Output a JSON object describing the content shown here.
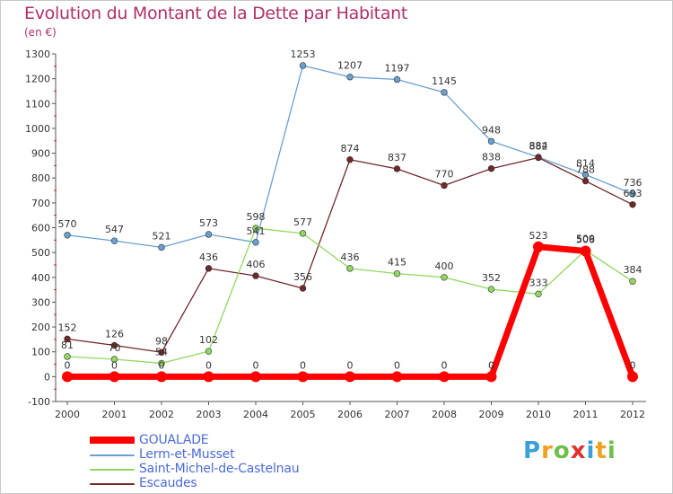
{
  "title": "Evolution du Montant de la Dette par Habitant",
  "unit": "(en €)",
  "logo": {
    "letters": [
      {
        "ch": "P",
        "color": "#3aa0d8"
      },
      {
        "ch": "r",
        "color": "#f0a020"
      },
      {
        "ch": "o",
        "color": "#6cc04a"
      },
      {
        "ch": "x",
        "color": "#e03030"
      },
      {
        "ch": "i",
        "color": "#3aa0d8"
      },
      {
        "ch": "t",
        "color": "#f0a020"
      },
      {
        "ch": "i",
        "color": "#6cc04a"
      }
    ]
  },
  "chart_data": {
    "type": "line",
    "x": [
      "2000",
      "2001",
      "2002",
      "2003",
      "2004",
      "2005",
      "2006",
      "2007",
      "2008",
      "2009",
      "2010",
      "2011",
      "2012"
    ],
    "ylim": [
      -100,
      1300
    ],
    "yticks": [
      -100,
      0,
      100,
      200,
      300,
      400,
      500,
      600,
      700,
      800,
      900,
      1000,
      1100,
      1200,
      1300
    ],
    "grid": false,
    "legend_position": "bottom-left",
    "series": [
      {
        "name": "GOUALADE",
        "color": "#ff0000",
        "values": [
          0,
          0,
          0,
          0,
          0,
          0,
          0,
          0,
          0,
          0,
          523,
          506,
          0
        ]
      },
      {
        "name": "Lerm-et-Musset",
        "color": "#6aa0d0",
        "values": [
          570,
          547,
          521,
          573,
          541,
          1253,
          1207,
          1197,
          1145,
          948,
          884,
          814,
          736
        ]
      },
      {
        "name": "Saint-Michel-de-Castelnau",
        "color": "#90d860",
        "values": [
          81,
          70,
          54,
          102,
          598,
          577,
          436,
          415,
          400,
          352,
          333,
          509,
          384
        ]
      },
      {
        "name": "Escaudes",
        "color": "#702828",
        "values": [
          152,
          126,
          98,
          436,
          406,
          356,
          874,
          837,
          770,
          838,
          882,
          788,
          693
        ]
      }
    ]
  }
}
